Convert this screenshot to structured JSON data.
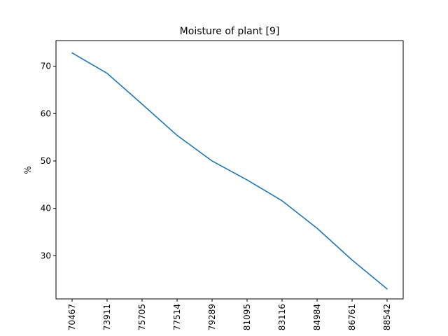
{
  "chart_data": {
    "type": "line",
    "title": "Moisture of plant [9]",
    "xlabel": "",
    "ylabel": "%",
    "categories": [
      "70467",
      "73911",
      "75705",
      "77514",
      "79289",
      "81095",
      "83116",
      "84984",
      "86761",
      "88542"
    ],
    "series": [
      {
        "values": [
          72.8,
          68.5,
          62.0,
          55.4,
          50.0,
          46.0,
          41.6,
          35.8,
          29.1,
          23.0
        ],
        "color": "#1f77b4"
      }
    ],
    "ylim": [
      20.9,
      75.4
    ],
    "yticks": [
      30,
      40,
      50,
      60,
      70
    ],
    "grid": false,
    "legend": "none"
  }
}
